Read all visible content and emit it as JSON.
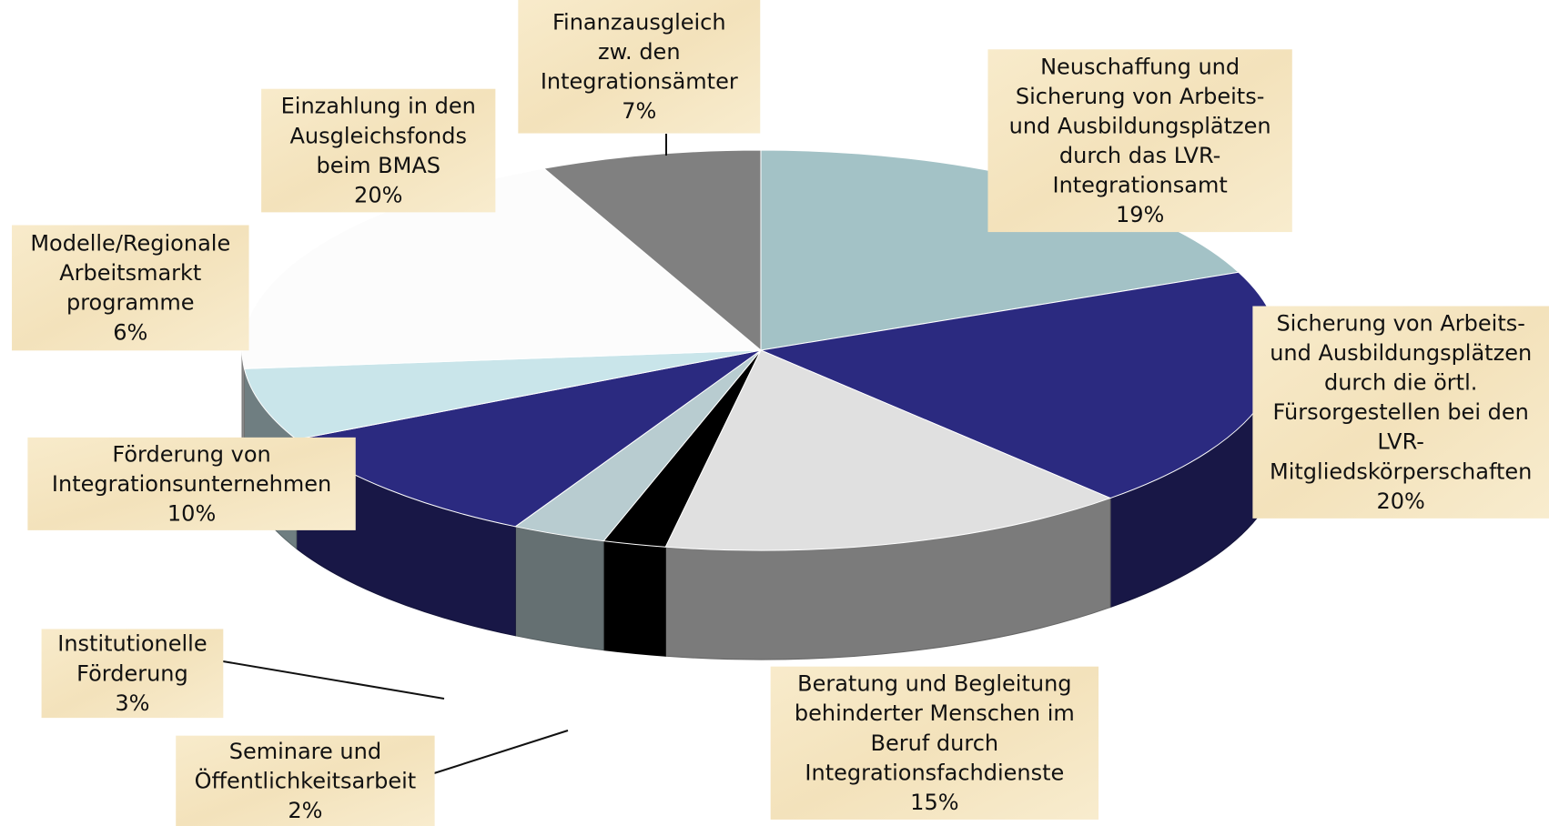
{
  "chart_data": {
    "type": "pie3d",
    "categories": [
      "Neuschaffung und\nSicherung von Arbeits-\nund Ausbildungsplätzen\ndurch das LVR-\nIntegrationsamt",
      "Sicherung von Arbeits-\nund Ausbildungsplätzen\ndurch die örtl.\nFürsorgestellen bei den\nLVR-\nMitgliedskörperschaften",
      "Beratung und Begleitung\nbehinderter Menschen im\nBeruf durch\nIntegrationsfachdienste",
      "Seminare und\nÖffentlichkeitsarbeit",
      "Institutionelle\nFörderung",
      "Förderung von\nIntegrationsunternehmen",
      "Modelle/Regionale\nArbeitsmarkt\nprogramme",
      "Einzahlung in den\nAusgleichsfonds\nbeim BMAS",
      "Finanzausgleich\nzw. den\nIntegrationsämter"
    ],
    "values": [
      19,
      20,
      15,
      2,
      3,
      10,
      6,
      20,
      7
    ],
    "value_labels": [
      "19%",
      "20%",
      "15%",
      "2%",
      "3%",
      "10%",
      "6%",
      "20%",
      "7%"
    ],
    "colors": [
      "#a3c2c6",
      "#2b2a80",
      "#e0e0e0",
      "#000000",
      "#b8ccd0",
      "#2b2a80",
      "#c9e5ea",
      "#fcfcfc",
      "#808080"
    ]
  }
}
